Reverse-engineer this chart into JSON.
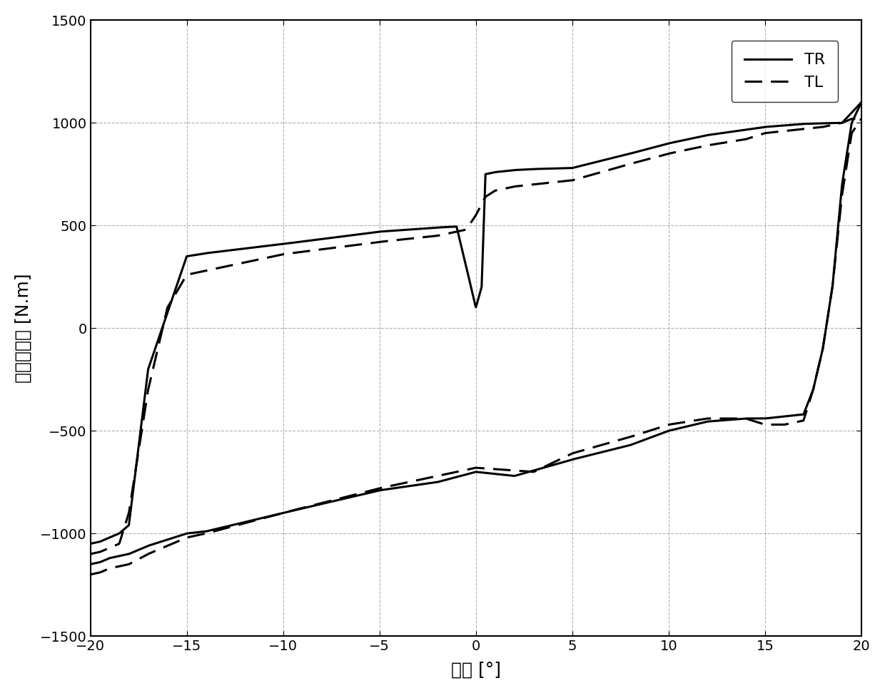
{
  "xlabel": "转角 [°]",
  "ylabel": "轮胎阻力矩 [N.m]",
  "xlim": [
    -20,
    20
  ],
  "ylim": [
    -1500,
    1500
  ],
  "xticks": [
    -20,
    -15,
    -10,
    -5,
    0,
    5,
    10,
    15,
    20
  ],
  "yticks": [
    -1500,
    -1000,
    -500,
    0,
    500,
    1000,
    1500
  ],
  "legend_TR": "TR",
  "legend_TL": "TL",
  "grid_color": "#aaaaaa"
}
